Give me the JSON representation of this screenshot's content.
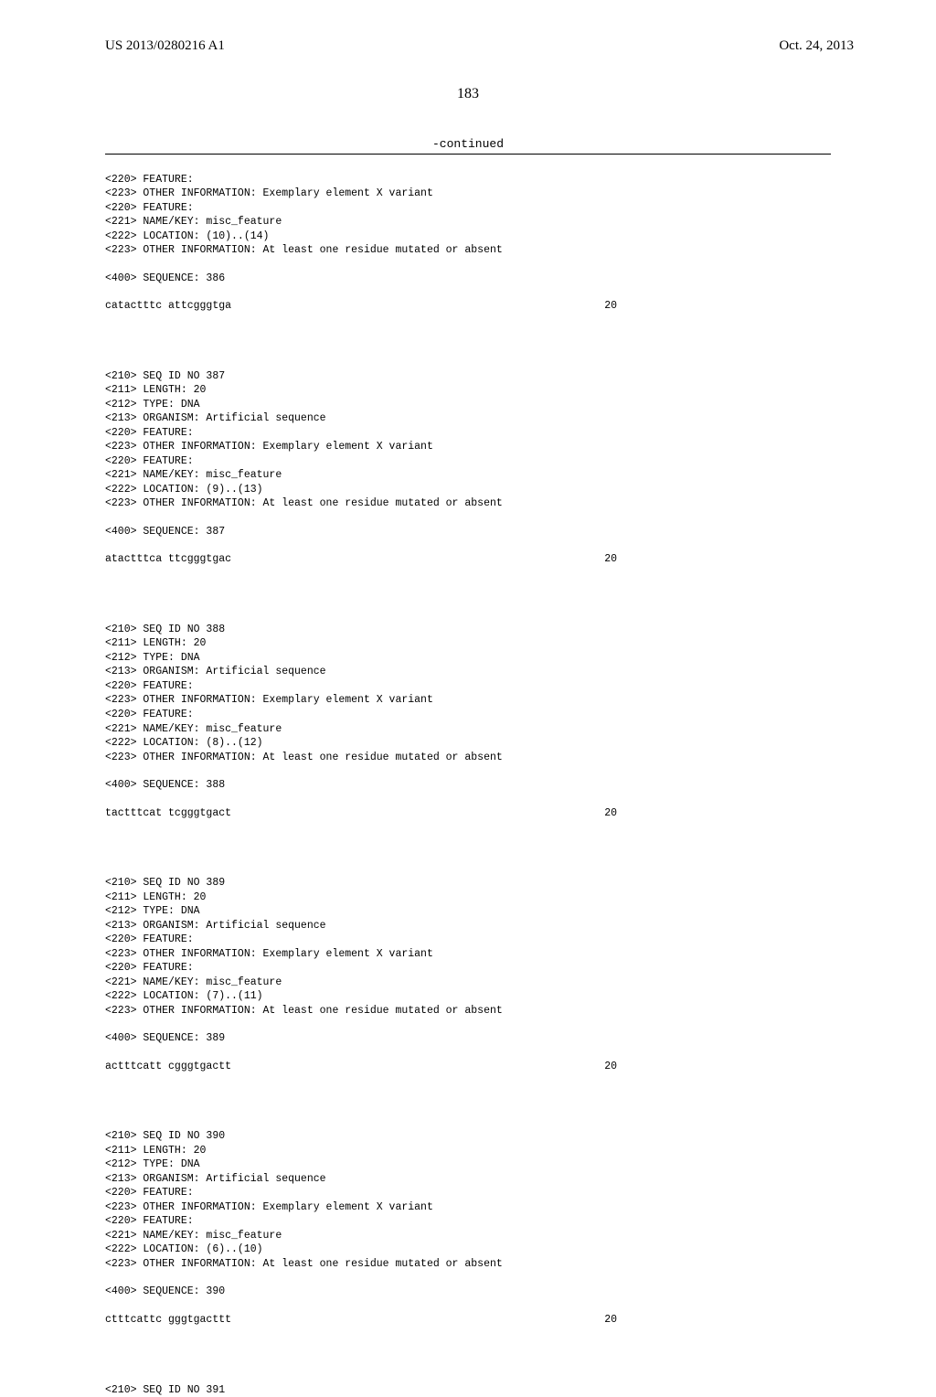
{
  "header": {
    "pub_number": "US 2013/0280216 A1",
    "pub_date": "Oct. 24, 2013"
  },
  "page_number": "183",
  "continued": "-continued",
  "entries": [
    {
      "lines": [
        "<220> FEATURE:",
        "<223> OTHER INFORMATION: Exemplary element X variant",
        "<220> FEATURE:",
        "<221> NAME/KEY: misc_feature",
        "<222> LOCATION: (10)..(14)",
        "<223> OTHER INFORMATION: At least one residue mutated or absent"
      ],
      "seq_label": "<400> SEQUENCE: 386",
      "sequence": "catactttc attcgggtga",
      "seq_num": "20"
    },
    {
      "lines": [
        "<210> SEQ ID NO 387",
        "<211> LENGTH: 20",
        "<212> TYPE: DNA",
        "<213> ORGANISM: Artificial sequence",
        "<220> FEATURE:",
        "<223> OTHER INFORMATION: Exemplary element X variant",
        "<220> FEATURE:",
        "<221> NAME/KEY: misc_feature",
        "<222> LOCATION: (9)..(13)",
        "<223> OTHER INFORMATION: At least one residue mutated or absent"
      ],
      "seq_label": "<400> SEQUENCE: 387",
      "sequence": "atactttca ttcgggtgac",
      "seq_num": "20"
    },
    {
      "lines": [
        "<210> SEQ ID NO 388",
        "<211> LENGTH: 20",
        "<212> TYPE: DNA",
        "<213> ORGANISM: Artificial sequence",
        "<220> FEATURE:",
        "<223> OTHER INFORMATION: Exemplary element X variant",
        "<220> FEATURE:",
        "<221> NAME/KEY: misc_feature",
        "<222> LOCATION: (8)..(12)",
        "<223> OTHER INFORMATION: At least one residue mutated or absent"
      ],
      "seq_label": "<400> SEQUENCE: 388",
      "sequence": "tactttcat tcgggtgact",
      "seq_num": "20"
    },
    {
      "lines": [
        "<210> SEQ ID NO 389",
        "<211> LENGTH: 20",
        "<212> TYPE: DNA",
        "<213> ORGANISM: Artificial sequence",
        "<220> FEATURE:",
        "<223> OTHER INFORMATION: Exemplary element X variant",
        "<220> FEATURE:",
        "<221> NAME/KEY: misc_feature",
        "<222> LOCATION: (7)..(11)",
        "<223> OTHER INFORMATION: At least one residue mutated or absent"
      ],
      "seq_label": "<400> SEQUENCE: 389",
      "sequence": "actttcatt cgggtgactt",
      "seq_num": "20"
    },
    {
      "lines": [
        "<210> SEQ ID NO 390",
        "<211> LENGTH: 20",
        "<212> TYPE: DNA",
        "<213> ORGANISM: Artificial sequence",
        "<220> FEATURE:",
        "<223> OTHER INFORMATION: Exemplary element X variant",
        "<220> FEATURE:",
        "<221> NAME/KEY: misc_feature",
        "<222> LOCATION: (6)..(10)",
        "<223> OTHER INFORMATION: At least one residue mutated or absent"
      ],
      "seq_label": "<400> SEQUENCE: 390",
      "sequence": "ctttcattc gggtgacttt",
      "seq_num": "20"
    }
  ],
  "trailing": "<210> SEQ ID NO 391"
}
